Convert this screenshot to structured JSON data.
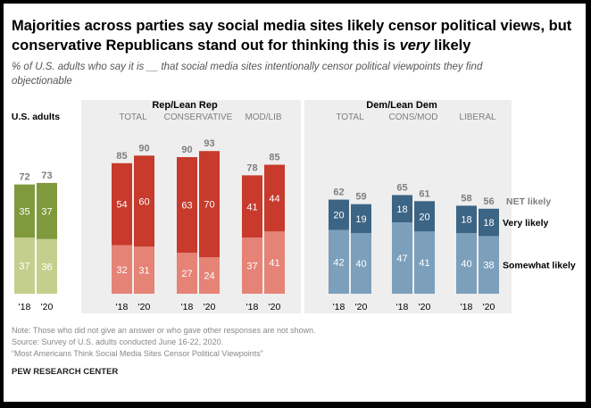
{
  "title_line1": "Majorities across parties say social media sites likely censor political views, but",
  "title_line2_pre": "conservative Republicans stand out for thinking this is ",
  "title_line2_em": "very",
  "title_line2_post": " likely",
  "subtitle_line1": "% of U.S. adults who say it is __ that social media sites intentionally censor political viewpoints they find",
  "subtitle_line2": "objectionable",
  "notes": {
    "note": "Note: Those who did not give an answer or who gave other responses are not shown.",
    "source": "Source: Survey of U.S. adults conducted June 16-22, 2020.",
    "report": "“Most Americans Think Social Media Sites Censor Political Viewpoints”",
    "org": "PEW RESEARCH CENTER"
  },
  "colors": {
    "us_dark": "#7f9a3c",
    "us_light": "#c5cf8d",
    "rep_dark": "#c73a2c",
    "rep_light": "#e58376",
    "dem_dark": "#3c6484",
    "dem_light": "#7c9fbc",
    "panel_bg": "#eeeeee",
    "net_label": "#7f7f7f",
    "header": "#7f7f7f"
  },
  "chart_data": {
    "type": "stacked bar",
    "categories_x": [
      "'18",
      "'20"
    ],
    "series_names": [
      "Very likely",
      "Somewhat likely",
      "NET likely"
    ],
    "legend": {
      "net": "NET likely",
      "very": "Very likely",
      "somewhat": "Somewhat likely"
    },
    "groups": [
      {
        "header": "Rep/Lean Rep",
        "subheader_left": "Rep/Lean Rep"
      },
      {
        "header": "Dem/Lean Dem"
      }
    ],
    "panels": [
      {
        "label": "U.S. adults",
        "label_bold": true,
        "group": "us",
        "very": [
          35,
          37
        ],
        "somewhat": [
          37,
          36
        ],
        "net": [
          72,
          73
        ]
      },
      {
        "label": "TOTAL",
        "group": "rep",
        "very": [
          54,
          60
        ],
        "somewhat": [
          32,
          31
        ],
        "net": [
          85,
          90
        ]
      },
      {
        "label": "CONSERVATIVE",
        "group": "rep",
        "very": [
          63,
          70
        ],
        "somewhat": [
          27,
          24
        ],
        "net": [
          90,
          93
        ]
      },
      {
        "label": "MOD/LIB",
        "group": "rep",
        "very": [
          41,
          44
        ],
        "somewhat": [
          37,
          41
        ],
        "net": [
          78,
          85
        ]
      },
      {
        "label": "TOTAL",
        "group": "dem",
        "very": [
          20,
          19
        ],
        "somewhat": [
          42,
          40
        ],
        "net": [
          62,
          59
        ]
      },
      {
        "label": "CONS/MOD",
        "group": "dem",
        "very": [
          18,
          20
        ],
        "somewhat": [
          47,
          41
        ],
        "net": [
          65,
          61
        ]
      },
      {
        "label": "LIBERAL",
        "group": "dem",
        "very": [
          18,
          18
        ],
        "somewhat": [
          40,
          38
        ],
        "net": [
          58,
          56
        ]
      }
    ],
    "ylim": [
      0,
      100
    ]
  }
}
